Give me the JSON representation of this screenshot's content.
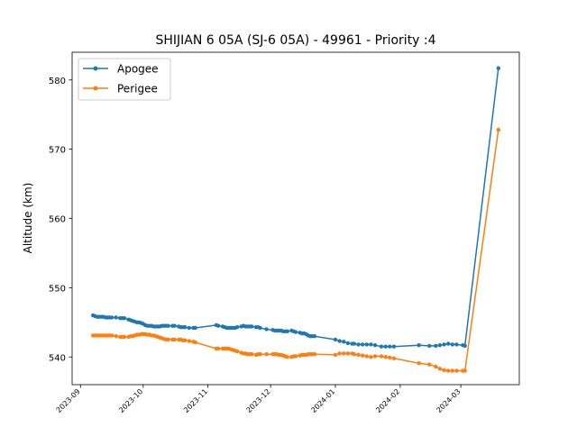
{
  "chart_data": {
    "type": "line",
    "title": "SHIJIAN 6 05A (SJ-6 05A) - 49961 - Priority :4",
    "xlabel": "",
    "ylabel": "Altitude (km)",
    "xlim": [
      "2023-08-28",
      "2024-03-29"
    ],
    "ylim": [
      536,
      584
    ],
    "xticks": [
      "2023-09",
      "2023-10",
      "2023-11",
      "2023-12",
      "2024-01",
      "2024-02",
      "2024-03"
    ],
    "yticks": [
      540,
      550,
      560,
      570,
      580
    ],
    "grid": false,
    "legend": {
      "placement": "top-left",
      "entries": [
        "Apogee",
        "Perigee"
      ]
    },
    "colors": {
      "Apogee": "#1f77b4",
      "Perigee": "#ff7f0e"
    },
    "series": [
      {
        "name": "Apogee",
        "x": [
          "2023-09-07",
          "2023-09-08",
          "2023-09-09",
          "2023-09-10",
          "2023-09-11",
          "2023-09-12",
          "2023-09-13",
          "2023-09-14",
          "2023-09-15",
          "2023-09-16",
          "2023-09-18",
          "2023-09-20",
          "2023-09-21",
          "2023-09-22",
          "2023-09-24",
          "2023-09-25",
          "2023-09-26",
          "2023-09-27",
          "2023-09-28",
          "2023-09-29",
          "2023-09-30",
          "2023-10-01",
          "2023-10-02",
          "2023-10-03",
          "2023-10-04",
          "2023-10-05",
          "2023-10-06",
          "2023-10-07",
          "2023-10-08",
          "2023-10-09",
          "2023-10-10",
          "2023-10-11",
          "2023-10-12",
          "2023-10-13",
          "2023-10-15",
          "2023-10-16",
          "2023-10-18",
          "2023-10-19",
          "2023-10-20",
          "2023-10-21",
          "2023-10-23",
          "2023-10-25",
          "2023-10-26",
          "2023-11-05",
          "2023-11-06",
          "2023-11-08",
          "2023-11-09",
          "2023-11-10",
          "2023-11-11",
          "2023-11-12",
          "2023-11-13",
          "2023-11-14",
          "2023-11-15",
          "2023-11-17",
          "2023-11-18",
          "2023-11-19",
          "2023-11-20",
          "2023-11-21",
          "2023-11-22",
          "2023-11-24",
          "2023-11-25",
          "2023-11-26",
          "2023-11-29",
          "2023-12-02",
          "2023-12-03",
          "2023-12-04",
          "2023-12-05",
          "2023-12-06",
          "2023-12-07",
          "2023-12-08",
          "2023-12-09",
          "2023-12-11",
          "2023-12-12",
          "2023-12-13",
          "2023-12-15",
          "2023-12-16",
          "2023-12-17",
          "2023-12-18",
          "2023-12-19",
          "2023-12-20",
          "2023-12-21",
          "2023-12-22",
          "2024-01-01",
          "2024-01-03",
          "2024-01-05",
          "2024-01-07",
          "2024-01-09",
          "2024-01-10",
          "2024-01-12",
          "2024-01-14",
          "2024-01-16",
          "2024-01-18",
          "2024-01-20",
          "2024-01-23",
          "2024-01-25",
          "2024-01-27",
          "2024-01-29",
          "2024-02-10",
          "2024-02-15",
          "2024-02-18",
          "2024-02-20",
          "2024-02-22",
          "2024-02-24",
          "2024-02-26",
          "2024-02-28",
          "2024-03-02",
          "2024-03-03",
          "2024-03-19"
        ],
        "values": [
          546.0,
          545.9,
          545.8,
          545.8,
          545.8,
          545.8,
          545.7,
          545.7,
          545.7,
          545.7,
          545.7,
          545.6,
          545.6,
          545.6,
          545.4,
          545.3,
          545.2,
          545.1,
          545.0,
          545.0,
          544.9,
          544.8,
          544.6,
          544.5,
          544.5,
          544.5,
          544.4,
          544.4,
          544.4,
          544.4,
          544.5,
          544.5,
          544.5,
          544.5,
          544.5,
          544.5,
          544.4,
          544.3,
          544.3,
          544.3,
          544.2,
          544.2,
          544.2,
          544.6,
          544.5,
          544.4,
          544.3,
          544.2,
          544.2,
          544.2,
          544.2,
          544.2,
          544.3,
          544.4,
          544.5,
          544.4,
          544.4,
          544.4,
          544.4,
          544.3,
          544.3,
          544.2,
          544.0,
          543.9,
          543.8,
          543.8,
          543.8,
          543.8,
          543.7,
          543.7,
          543.7,
          543.8,
          543.7,
          543.6,
          543.5,
          543.4,
          543.4,
          543.3,
          543.1,
          543.0,
          543.0,
          543.0,
          542.5,
          542.3,
          542.2,
          542.0,
          541.9,
          541.9,
          541.8,
          541.8,
          541.8,
          541.8,
          541.7,
          541.5,
          541.5,
          541.5,
          541.5,
          541.7,
          541.6,
          541.6,
          541.7,
          541.8,
          541.9,
          541.8,
          541.8,
          541.7,
          541.6,
          581.7
        ]
      },
      {
        "name": "Perigee",
        "x": [
          "2023-09-07",
          "2023-09-08",
          "2023-09-09",
          "2023-09-10",
          "2023-09-11",
          "2023-09-12",
          "2023-09-13",
          "2023-09-14",
          "2023-09-15",
          "2023-09-16",
          "2023-09-18",
          "2023-09-20",
          "2023-09-21",
          "2023-09-22",
          "2023-09-24",
          "2023-09-25",
          "2023-09-26",
          "2023-09-27",
          "2023-09-28",
          "2023-09-29",
          "2023-09-30",
          "2023-10-01",
          "2023-10-02",
          "2023-10-03",
          "2023-10-04",
          "2023-10-05",
          "2023-10-06",
          "2023-10-07",
          "2023-10-08",
          "2023-10-09",
          "2023-10-10",
          "2023-10-11",
          "2023-10-12",
          "2023-10-13",
          "2023-10-15",
          "2023-10-16",
          "2023-10-18",
          "2023-10-19",
          "2023-10-20",
          "2023-10-21",
          "2023-10-23",
          "2023-10-25",
          "2023-10-26",
          "2023-11-05",
          "2023-11-06",
          "2023-11-08",
          "2023-11-09",
          "2023-11-10",
          "2023-11-11",
          "2023-11-12",
          "2023-11-13",
          "2023-11-14",
          "2023-11-15",
          "2023-11-17",
          "2023-11-18",
          "2023-11-19",
          "2023-11-20",
          "2023-11-21",
          "2023-11-22",
          "2023-11-24",
          "2023-11-25",
          "2023-11-26",
          "2023-11-29",
          "2023-12-02",
          "2023-12-03",
          "2023-12-04",
          "2023-12-05",
          "2023-12-06",
          "2023-12-07",
          "2023-12-08",
          "2023-12-09",
          "2023-12-11",
          "2023-12-12",
          "2023-12-13",
          "2023-12-15",
          "2023-12-16",
          "2023-12-17",
          "2023-12-18",
          "2023-12-19",
          "2023-12-20",
          "2023-12-21",
          "2023-12-22",
          "2024-01-01",
          "2024-01-03",
          "2024-01-05",
          "2024-01-07",
          "2024-01-09",
          "2024-01-10",
          "2024-01-12",
          "2024-01-14",
          "2024-01-16",
          "2024-01-18",
          "2024-01-20",
          "2024-01-23",
          "2024-01-25",
          "2024-01-27",
          "2024-01-29",
          "2024-02-10",
          "2024-02-15",
          "2024-02-18",
          "2024-02-20",
          "2024-02-22",
          "2024-02-24",
          "2024-02-26",
          "2024-02-28",
          "2024-03-02",
          "2024-03-03",
          "2024-03-19"
        ],
        "values": [
          543.1,
          543.1,
          543.1,
          543.1,
          543.1,
          543.1,
          543.1,
          543.1,
          543.1,
          543.1,
          543.0,
          542.9,
          542.9,
          542.9,
          542.9,
          543.0,
          543.0,
          543.1,
          543.2,
          543.2,
          543.3,
          543.3,
          543.3,
          543.2,
          543.2,
          543.1,
          543.1,
          543.0,
          542.9,
          542.8,
          542.7,
          542.6,
          542.5,
          542.5,
          542.5,
          542.5,
          542.5,
          542.5,
          542.4,
          542.4,
          542.3,
          542.2,
          542.1,
          541.2,
          541.2,
          541.2,
          541.2,
          541.2,
          541.2,
          541.1,
          541.0,
          540.9,
          540.8,
          540.6,
          540.5,
          540.5,
          540.4,
          540.4,
          540.4,
          540.3,
          540.4,
          540.4,
          540.4,
          540.4,
          540.4,
          540.4,
          540.3,
          540.3,
          540.2,
          540.1,
          540.0,
          540.0,
          540.1,
          540.1,
          540.2,
          540.3,
          540.3,
          540.3,
          540.4,
          540.4,
          540.4,
          540.4,
          540.3,
          540.5,
          540.5,
          540.5,
          540.5,
          540.4,
          540.3,
          540.2,
          540.1,
          540.0,
          540.1,
          540.1,
          540.0,
          539.9,
          539.8,
          539.1,
          538.9,
          538.6,
          538.3,
          538.1,
          538.0,
          538.0,
          538.0,
          538.0,
          538.0,
          572.8
        ]
      }
    ]
  }
}
